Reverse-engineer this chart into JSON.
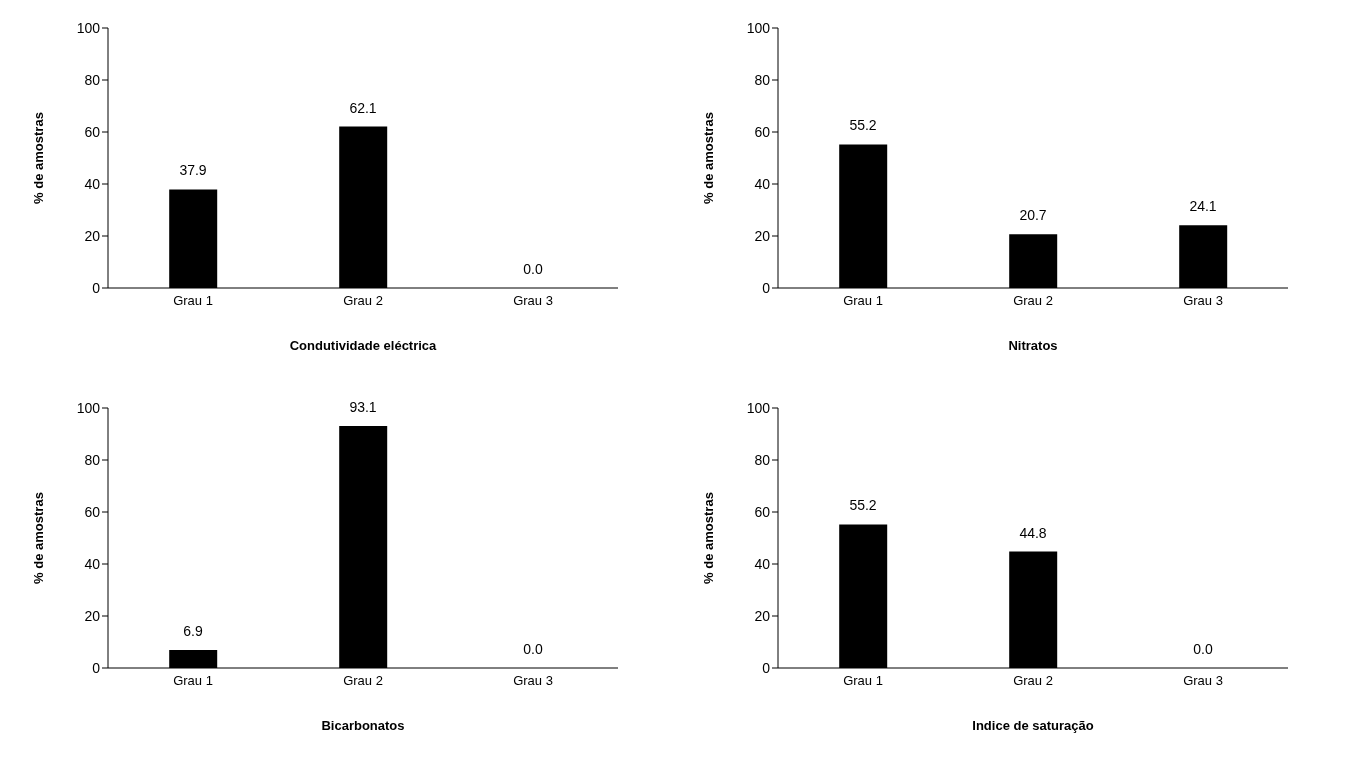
{
  "chart_data": [
    {
      "type": "bar",
      "xlabel": "Condutividade eléctrica",
      "ylabel": "% de amostras",
      "categories": [
        "Grau 1",
        "Grau 2",
        "Grau 3"
      ],
      "values": [
        37.9,
        62.1,
        0
      ],
      "value_labels": [
        "37.9",
        "62.1",
        "0.0"
      ],
      "color": "#000000",
      "ylim": [
        0,
        100
      ],
      "yticks": [
        0,
        20,
        40,
        60,
        80,
        100
      ],
      "grid": false
    },
    {
      "type": "bar",
      "xlabel": "Nitratos",
      "ylabel": "% de amostras",
      "categories": [
        "Grau 1",
        "Grau 2",
        "Grau 3"
      ],
      "values": [
        55.2,
        20.7,
        24.1
      ],
      "value_labels": [
        "55.2",
        "20.7",
        "24.1"
      ],
      "color": "#000000",
      "ylim": [
        0,
        100
      ],
      "yticks": [
        0,
        20,
        40,
        60,
        80,
        100
      ],
      "grid": false
    },
    {
      "type": "bar",
      "xlabel": "Bicarbonatos",
      "ylabel": "% de amostras",
      "categories": [
        "Grau 1",
        "Grau 2",
        "Grau 3"
      ],
      "values": [
        6.9,
        93.1,
        0
      ],
      "value_labels": [
        "6.9",
        "93.1",
        "0.0"
      ],
      "color": "#000000",
      "ylim": [
        0,
        100
      ],
      "yticks": [
        0,
        20,
        40,
        60,
        80,
        100
      ],
      "grid": false
    },
    {
      "type": "bar",
      "xlabel": "Indice de saturação",
      "ylabel": "% de amostras",
      "categories": [
        "Grau 1",
        "Grau 2",
        "Grau 3"
      ],
      "values": [
        55.2,
        44.8,
        0
      ],
      "value_labels": [
        "55.2",
        "44.8",
        "0.0"
      ],
      "color": "#000000",
      "ylim": [
        0,
        100
      ],
      "yticks": [
        0,
        20,
        40,
        60,
        80,
        100
      ],
      "grid": false
    }
  ]
}
